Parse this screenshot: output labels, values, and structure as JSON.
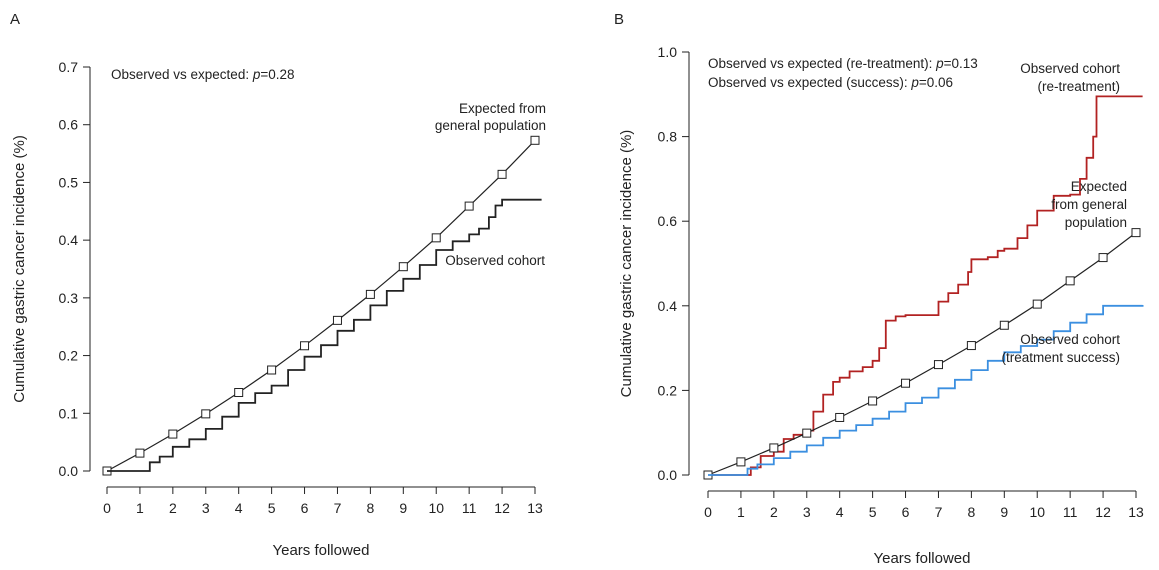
{
  "figure": {
    "background": "#ffffff"
  },
  "chart_data": [
    {
      "panel": "A",
      "type": "line",
      "xlabel": "Years followed",
      "ylabel": "Cumulative gastric cancer incidence (%)",
      "xlim": [
        0,
        13
      ],
      "ylim": [
        0,
        0.7
      ],
      "xticks": [
        0,
        1,
        2,
        3,
        4,
        5,
        6,
        7,
        8,
        9,
        10,
        11,
        12,
        13
      ],
      "yticks": [
        "0.0",
        "0.1",
        "0.2",
        "0.3",
        "0.4",
        "0.5",
        "0.6",
        "0.7"
      ],
      "grid": false,
      "annotation_prefix": "Observed vs expected: ",
      "annotation_p": "p",
      "annotation_suffix": "=0.28",
      "series": [
        {
          "name_lines": [
            "Expected from",
            "general population"
          ],
          "color": "#222222",
          "style": "line-with-square-markers",
          "x": [
            0,
            1,
            2,
            3,
            4,
            5,
            6,
            7,
            8,
            9,
            10,
            11,
            12,
            13
          ],
          "y": [
            0.0,
            0.031,
            0.064,
            0.099,
            0.136,
            0.175,
            0.217,
            0.261,
            0.306,
            0.354,
            0.404,
            0.459,
            0.514,
            0.573
          ]
        },
        {
          "name_lines": [
            "Observed cohort"
          ],
          "color": "#222222",
          "style": "step",
          "x": [
            0,
            1.0,
            1.3,
            1.6,
            2.0,
            2.5,
            3.0,
            3.5,
            4.0,
            4.5,
            5.0,
            5.5,
            6.0,
            6.5,
            7.0,
            7.5,
            8.0,
            8.5,
            9.0,
            9.5,
            10.0,
            10.5,
            11.0,
            11.3,
            11.6,
            11.8,
            12.0,
            13.2
          ],
          "y": [
            0.0,
            0.0,
            0.015,
            0.025,
            0.042,
            0.055,
            0.073,
            0.094,
            0.118,
            0.135,
            0.148,
            0.175,
            0.198,
            0.218,
            0.243,
            0.262,
            0.287,
            0.312,
            0.333,
            0.357,
            0.383,
            0.398,
            0.41,
            0.42,
            0.44,
            0.46,
            0.47,
            0.47
          ]
        }
      ]
    },
    {
      "panel": "B",
      "type": "line",
      "xlabel": "Years followed",
      "ylabel": "Cumulative gastric cancer incidence (%)",
      "xlim": [
        0,
        13
      ],
      "ylim": [
        0,
        1.0
      ],
      "xticks": [
        0,
        1,
        2,
        3,
        4,
        5,
        6,
        7,
        8,
        9,
        10,
        11,
        12,
        13
      ],
      "yticks": [
        "0.0",
        "0.2",
        "0.4",
        "0.6",
        "0.8",
        "1.0"
      ],
      "grid": false,
      "annotations": [
        {
          "prefix": "Observed vs expected (re-treatment): ",
          "p": "p",
          "suffix": "=0.13"
        },
        {
          "prefix": "Observed vs expected (success): ",
          "p": "p",
          "suffix": "=0.06"
        }
      ],
      "series": [
        {
          "name_lines": [
            "Observed cohort",
            "(re-treatment)"
          ],
          "color": "#b22222",
          "style": "step",
          "x": [
            0,
            1.0,
            1.3,
            1.6,
            2.0,
            2.3,
            2.6,
            3.0,
            3.2,
            3.5,
            3.8,
            4.0,
            4.3,
            4.7,
            5.0,
            5.2,
            5.4,
            5.7,
            6.0,
            6.5,
            7.0,
            7.3,
            7.6,
            7.9,
            8.0,
            8.5,
            8.8,
            9.0,
            9.4,
            9.7,
            10.0,
            10.5,
            11.0,
            11.3,
            11.5,
            11.7,
            11.8,
            13.2
          ],
          "y": [
            0.0,
            0.0,
            0.018,
            0.045,
            0.055,
            0.085,
            0.095,
            0.105,
            0.15,
            0.19,
            0.22,
            0.23,
            0.245,
            0.255,
            0.27,
            0.3,
            0.365,
            0.375,
            0.378,
            0.378,
            0.41,
            0.43,
            0.45,
            0.48,
            0.51,
            0.515,
            0.53,
            0.535,
            0.56,
            0.59,
            0.625,
            0.66,
            0.663,
            0.7,
            0.75,
            0.8,
            0.895,
            0.895
          ]
        },
        {
          "name_lines": [
            "Expected",
            "from general",
            "population"
          ],
          "color": "#222222",
          "style": "line-with-square-markers",
          "x": [
            0,
            1,
            2,
            3,
            4,
            5,
            6,
            7,
            8,
            9,
            10,
            11,
            12,
            13
          ],
          "y": [
            0.0,
            0.031,
            0.064,
            0.099,
            0.136,
            0.175,
            0.217,
            0.261,
            0.306,
            0.354,
            0.404,
            0.459,
            0.514,
            0.573
          ]
        },
        {
          "name_lines": [
            "Observed cohort",
            "(treatment success)"
          ],
          "color": "#3b8fe0",
          "style": "step",
          "x": [
            0,
            1.0,
            1.2,
            1.5,
            2.0,
            2.5,
            3.0,
            3.5,
            4.0,
            4.5,
            5.0,
            5.5,
            6.0,
            6.5,
            7.0,
            7.5,
            8.0,
            8.5,
            9.0,
            9.5,
            10.0,
            10.5,
            11.0,
            11.5,
            12.0,
            13.2
          ],
          "y": [
            0.0,
            0.0,
            0.015,
            0.025,
            0.04,
            0.055,
            0.07,
            0.088,
            0.105,
            0.118,
            0.133,
            0.15,
            0.17,
            0.183,
            0.205,
            0.225,
            0.248,
            0.27,
            0.29,
            0.305,
            0.32,
            0.34,
            0.36,
            0.38,
            0.4,
            0.402
          ]
        }
      ]
    }
  ]
}
